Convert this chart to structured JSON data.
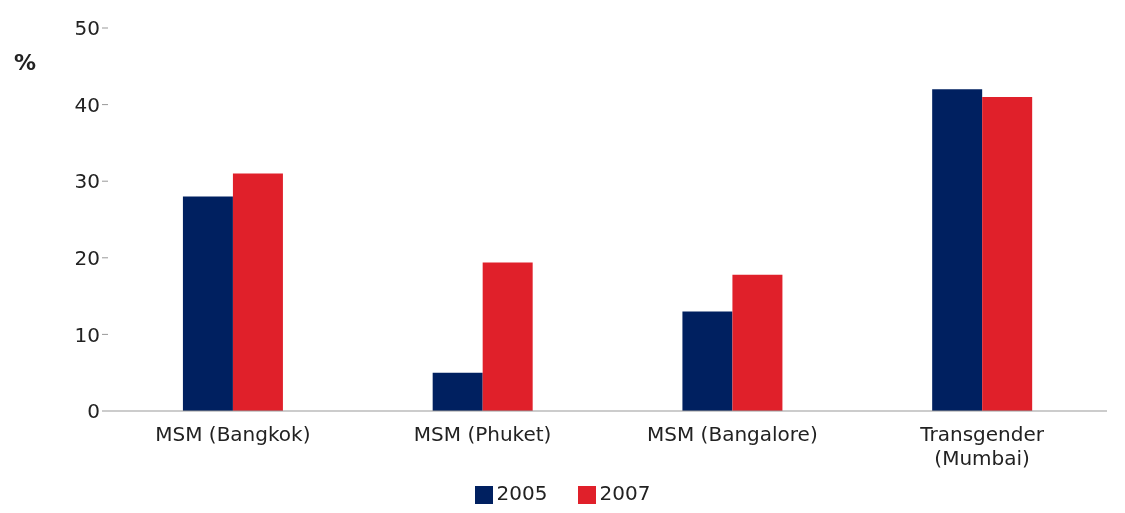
{
  "chart_data": {
    "type": "bar",
    "ylabel": "%",
    "categories": [
      "MSM (Bangkok)",
      "MSM (Phuket)",
      "MSM (Bangalore)",
      "Transgender (Mumbai)"
    ],
    "series": [
      {
        "name": "2005",
        "color": "#002060",
        "values": [
          28,
          5,
          13,
          42
        ]
      },
      {
        "name": "2007",
        "color": "#e0202a",
        "values": [
          31,
          19.4,
          17.8,
          41
        ]
      }
    ],
    "ylim": [
      0,
      50
    ],
    "yticks": [
      0,
      10,
      20,
      30,
      40,
      50
    ],
    "grid": false,
    "legend": "bottom"
  }
}
